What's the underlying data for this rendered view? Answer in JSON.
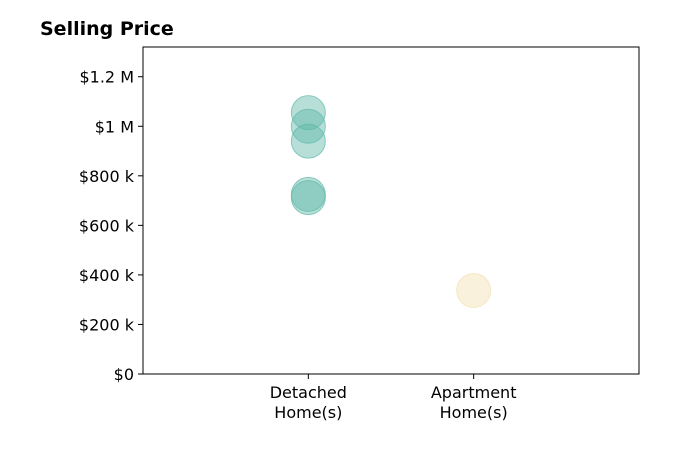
{
  "chart_data": {
    "type": "scatter",
    "title": "Selling Price",
    "xlabel": "",
    "ylabel": "",
    "categories": [
      "Detached\nHome(s)",
      "Apartment\nHome(s)"
    ],
    "x_categories_positions": [
      1,
      2
    ],
    "xlim": [
      0,
      3
    ],
    "ylim": [
      0,
      1320000
    ],
    "y_ticks": [
      0,
      200000,
      400000,
      600000,
      800000,
      1000000,
      1200000
    ],
    "y_tick_labels": [
      "$0",
      "$200 k",
      "$400 k",
      "$600 k",
      "$800 k",
      "$1 M",
      "$1.2 M"
    ],
    "grid": false,
    "series": [
      {
        "color": "#5fb8a8",
        "points": [
          {
            "x": 1,
            "y": 1055000
          },
          {
            "x": 1,
            "y": 1000000
          },
          {
            "x": 1,
            "y": 940000
          },
          {
            "x": 1,
            "y": 725000
          },
          {
            "x": 1,
            "y": 712000
          }
        ]
      },
      {
        "color": "#f3dfb2",
        "points": [
          {
            "x": 2,
            "y": 337000
          }
        ]
      }
    ]
  }
}
